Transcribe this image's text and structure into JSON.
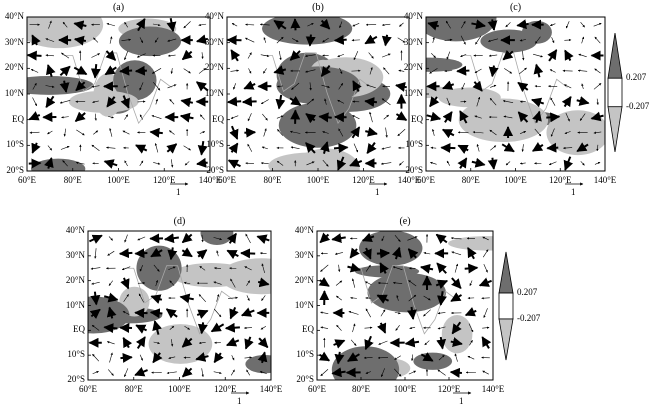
{
  "panels": [
    {
      "label": "(a)"
    },
    {
      "label": "(b)"
    },
    {
      "label": "(c)"
    },
    {
      "label": "(d)"
    },
    {
      "label": "(e)"
    }
  ],
  "lat_labels": [
    "40°N",
    "30°N",
    "20°N",
    "10°N",
    "EQ",
    "10°S",
    "20°S"
  ],
  "lon_labels": [
    "60°E",
    "80°E",
    "100°E",
    "120°E",
    "140°E"
  ],
  "reference_vector_label": "1",
  "colorbar": {
    "upper_label": "0.207",
    "lower_label": "-0.207",
    "positive_color": "#6e6e6e",
    "negative_color": "#c4c4c4"
  }
}
